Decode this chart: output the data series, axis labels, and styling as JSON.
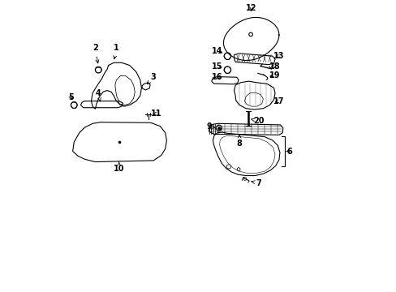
{
  "bg_color": "#ffffff",
  "line_color": "#000000",
  "figsize": [
    4.89,
    3.6
  ],
  "dpi": 100,
  "xlim": [
    0,
    10
  ],
  "ylim": [
    0,
    11
  ]
}
